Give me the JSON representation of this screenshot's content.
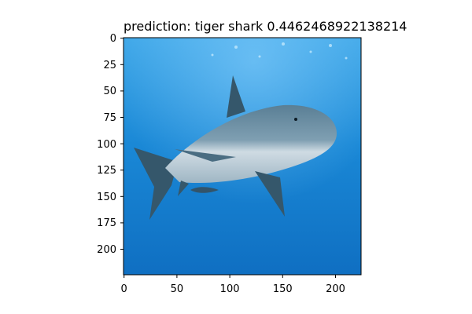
{
  "figure": {
    "title": "prediction: tiger shark 0.4462468922138214"
  },
  "image": {
    "subject": "shark",
    "palette": {
      "water_surface": "#3ea7e8",
      "water_mid": "#1a88d6",
      "water_deep": "#0f6fc2",
      "shark_top": "#5a7f95",
      "shark_belly": "#d9e3ea",
      "fin": "#35576b"
    }
  },
  "axes": {
    "x_ticks": [
      "0",
      "50",
      "100",
      "150",
      "200"
    ],
    "y_ticks": [
      "0",
      "25",
      "50",
      "75",
      "100",
      "125",
      "150",
      "175",
      "200"
    ]
  }
}
